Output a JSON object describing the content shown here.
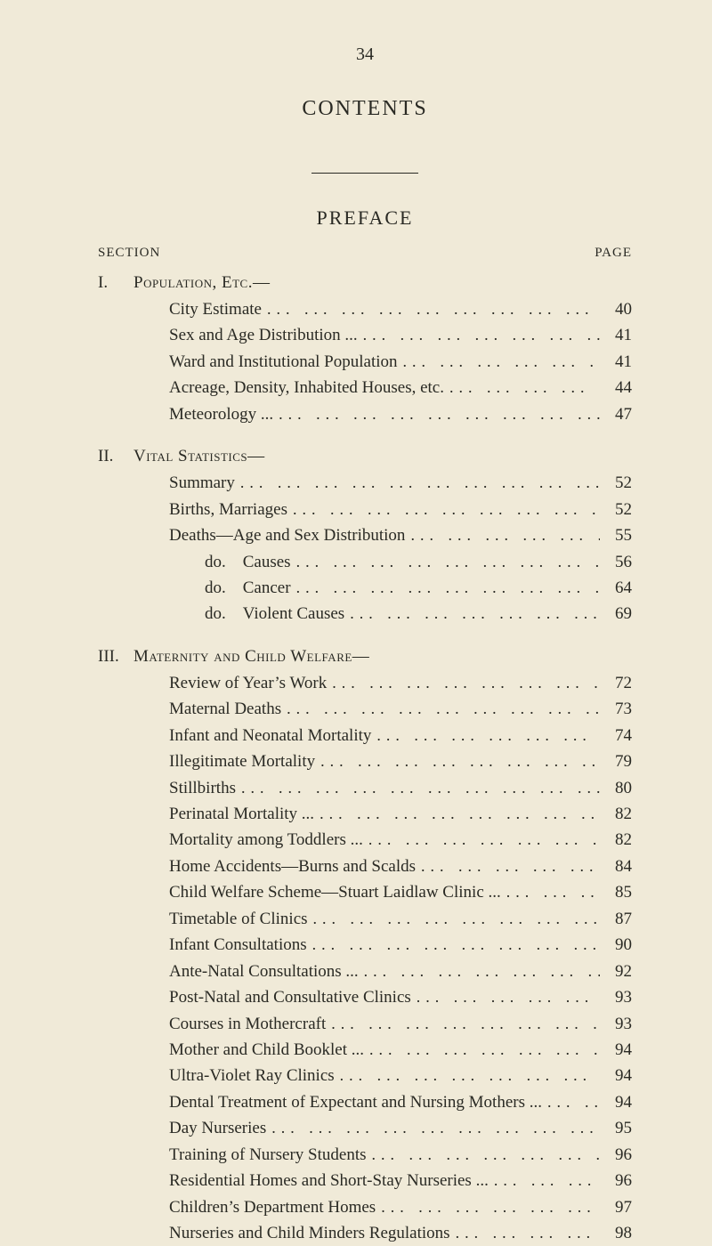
{
  "page_number": "34",
  "title": "CONTENTS",
  "preface": "PREFACE",
  "section_header": "SECTION",
  "page_header": "PAGE",
  "sections": [
    {
      "roman": "I.",
      "name": "Population, Etc.—",
      "entries": [
        {
          "label": "City Estimate",
          "page": "40",
          "sub": false
        },
        {
          "label": "Sex and Age Distribution ...",
          "page": "41",
          "sub": false
        },
        {
          "label": "Ward and Institutional Population",
          "page": "41",
          "sub": false
        },
        {
          "label": "Acreage, Density, Inhabited Houses, etc.",
          "page": "44",
          "sub": false
        },
        {
          "label": "Meteorology ...",
          "page": "47",
          "sub": false
        }
      ]
    },
    {
      "roman": "II.",
      "name": "Vital Statistics—",
      "entries": [
        {
          "label": "Summary",
          "page": "52",
          "sub": false
        },
        {
          "label": "Births, Marriages",
          "page": "52",
          "sub": false
        },
        {
          "label": "Deaths—Age and Sex Distribution",
          "page": "55",
          "sub": false
        },
        {
          "label": "do. Causes",
          "page": "56",
          "sub": true
        },
        {
          "label": "do. Cancer",
          "page": "64",
          "sub": true
        },
        {
          "label": "do. Violent Causes",
          "page": "69",
          "sub": true
        }
      ]
    },
    {
      "roman": "III.",
      "name": "Maternity and Child Welfare—",
      "entries": [
        {
          "label": "Review of Year’s Work",
          "page": "72",
          "sub": false
        },
        {
          "label": "Maternal Deaths",
          "page": "73",
          "sub": false
        },
        {
          "label": "Infant and Neonatal Mortality",
          "page": "74",
          "sub": false
        },
        {
          "label": "Illegitimate Mortality",
          "page": "79",
          "sub": false
        },
        {
          "label": "Stillbirths",
          "page": "80",
          "sub": false
        },
        {
          "label": "Perinatal Mortality ...",
          "page": "82",
          "sub": false
        },
        {
          "label": "Mortality among Toddlers ...",
          "page": "82",
          "sub": false
        },
        {
          "label": "Home Accidents—Burns and Scalds",
          "page": "84",
          "sub": false
        },
        {
          "label": "Child Welfare Scheme—Stuart Laidlaw Clinic ...",
          "page": "85",
          "sub": false
        },
        {
          "label": "Timetable of Clinics",
          "page": "87",
          "sub": false
        },
        {
          "label": "Infant Consultations",
          "page": "90",
          "sub": false
        },
        {
          "label": "Ante-Natal Consultations ...",
          "page": "92",
          "sub": false
        },
        {
          "label": "Post-Natal and Consultative Clinics",
          "page": "93",
          "sub": false
        },
        {
          "label": "Courses in Mothercraft",
          "page": "93",
          "sub": false
        },
        {
          "label": "Mother and Child Booklet ...",
          "page": "94",
          "sub": false
        },
        {
          "label": "Ultra-Violet Ray Clinics",
          "page": "94",
          "sub": false
        },
        {
          "label": "Dental Treatment of Expectant and Nursing Mothers ...",
          "page": "94",
          "sub": false
        },
        {
          "label": "Day Nurseries",
          "page": "95",
          "sub": false
        },
        {
          "label": "Training of Nursery Students",
          "page": "96",
          "sub": false
        },
        {
          "label": "Residential Homes and Short-Stay Nurseries ...",
          "page": "96",
          "sub": false
        },
        {
          "label": "Children’s Department Homes",
          "page": "97",
          "sub": false
        },
        {
          "label": "Nurseries and Child Minders Regulations",
          "page": "98",
          "sub": false
        }
      ]
    }
  ]
}
